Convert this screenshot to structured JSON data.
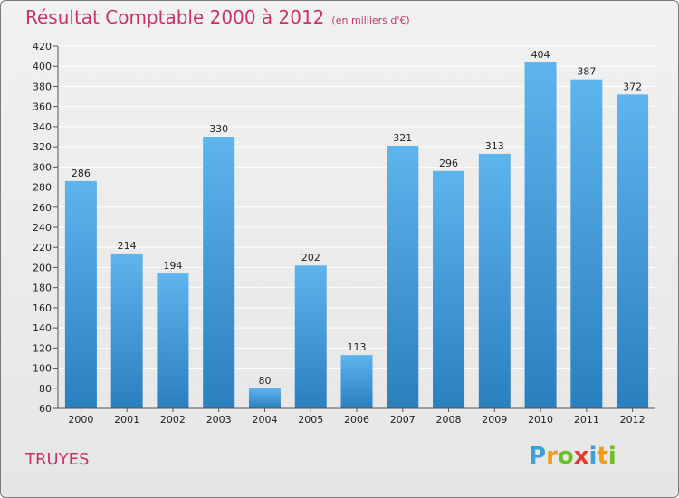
{
  "chart_data": {
    "type": "bar",
    "title": "Résultat Comptable 2000 à 2012",
    "unit_label": "(en milliers d'€)",
    "xlabel": "",
    "ylabel": "",
    "categories": [
      "2000",
      "2001",
      "2002",
      "2003",
      "2004",
      "2005",
      "2006",
      "2007",
      "2008",
      "2009",
      "2010",
      "2011",
      "2012"
    ],
    "values": [
      286,
      214,
      194,
      330,
      80,
      202,
      113,
      321,
      296,
      313,
      404,
      387,
      372
    ],
    "ylim": [
      60,
      420
    ],
    "ytick_step": 20,
    "grid": true,
    "legend": "none"
  },
  "commune": "TRUYES",
  "logo": {
    "letters": [
      "P",
      "r",
      "o",
      "x",
      "i",
      "t",
      "i"
    ],
    "colors": [
      "#3da0d8",
      "#f39c1c",
      "#6cbf2a",
      "#e03c2f",
      "#3da0d8",
      "#f39c1c",
      "#6cbf2a"
    ]
  },
  "colors": {
    "title": "#c8336e",
    "bar_top": "#5eb4ec",
    "bar_bottom": "#2a7fbf",
    "grid": "#ffffff"
  }
}
